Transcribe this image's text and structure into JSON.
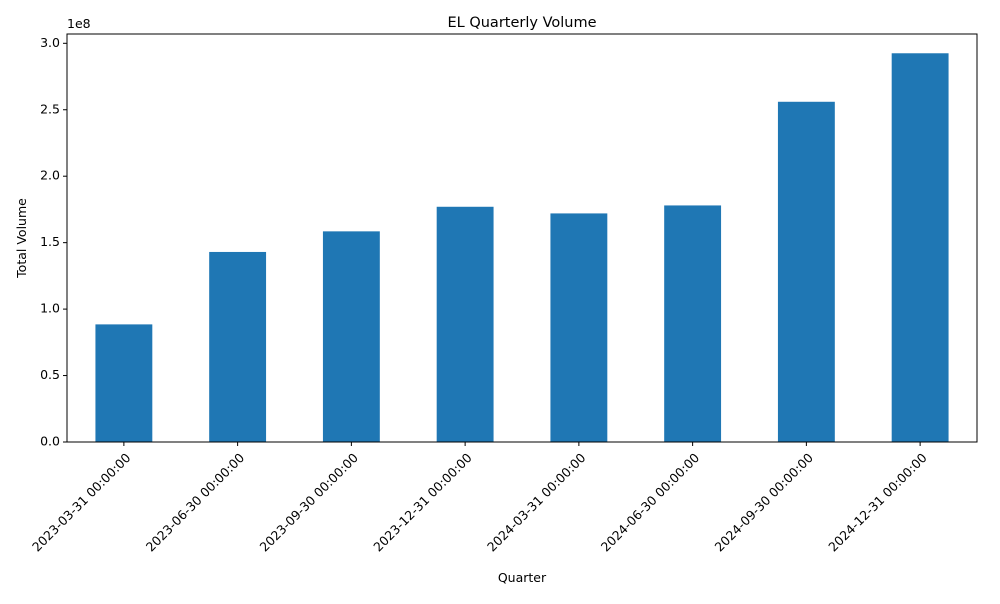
{
  "chart_data": {
    "type": "bar",
    "title": "EL Quarterly Volume",
    "xlabel": "Quarter",
    "ylabel": "Total Volume",
    "y_offset_label": "1e8",
    "y_scale_multiplier": 100000000,
    "categories": [
      "2023-03-31 00:00:00",
      "2023-06-30 00:00:00",
      "2023-09-30 00:00:00",
      "2023-12-31 00:00:00",
      "2024-03-31 00:00:00",
      "2024-06-30 00:00:00",
      "2024-09-30 00:00:00",
      "2024-12-31 00:00:00"
    ],
    "values": [
      88500000,
      143000000,
      158500000,
      177000000,
      172000000,
      178000000,
      256000000,
      292500000
    ],
    "ylim": [
      0,
      307000000
    ],
    "yticks": [
      0.0,
      0.5,
      1.0,
      1.5,
      2.0,
      2.5,
      3.0
    ],
    "ytick_labels": [
      "0.0",
      "0.5",
      "1.0",
      "1.5",
      "2.0",
      "2.5",
      "3.0"
    ],
    "grid": false,
    "legend": "none",
    "colors": {
      "bar": "#1f77b4",
      "axis": "#000000",
      "background": "#ffffff"
    }
  }
}
